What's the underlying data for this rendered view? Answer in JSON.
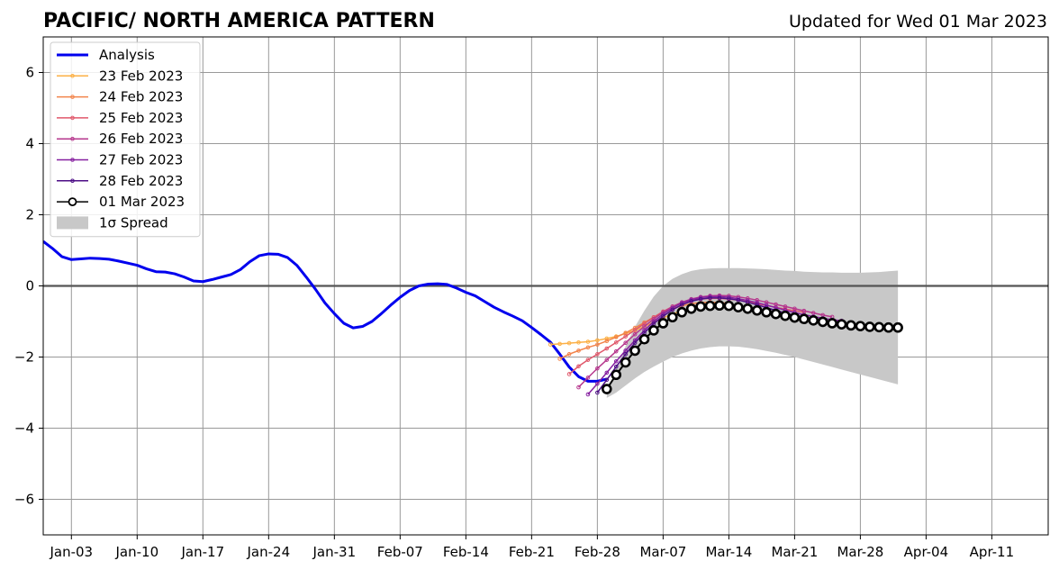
{
  "chart_data": {
    "type": "line",
    "title": "PACIFIC/ NORTH AMERICA PATTERN",
    "subtitle": "Updated for Wed 01 Mar 2023",
    "xlabel": "",
    "ylabel": "",
    "xlim": [
      "2022-12-31",
      "2023-04-17"
    ],
    "ylim": [
      -7,
      7
    ],
    "grid": true,
    "legend_position": "upper-left",
    "x_ticks": [
      {
        "date": "2023-01-03",
        "label": "Jan-03"
      },
      {
        "date": "2023-01-10",
        "label": "Jan-10"
      },
      {
        "date": "2023-01-17",
        "label": "Jan-17"
      },
      {
        "date": "2023-01-24",
        "label": "Jan-24"
      },
      {
        "date": "2023-01-31",
        "label": "Jan-31"
      },
      {
        "date": "2023-02-07",
        "label": "Feb-07"
      },
      {
        "date": "2023-02-14",
        "label": "Feb-14"
      },
      {
        "date": "2023-02-21",
        "label": "Feb-21"
      },
      {
        "date": "2023-02-28",
        "label": "Feb-28"
      },
      {
        "date": "2023-03-07",
        "label": "Mar-07"
      },
      {
        "date": "2023-03-14",
        "label": "Mar-14"
      },
      {
        "date": "2023-03-21",
        "label": "Mar-21"
      },
      {
        "date": "2023-03-28",
        "label": "Mar-28"
      },
      {
        "date": "2023-04-04",
        "label": "Apr-04"
      },
      {
        "date": "2023-04-11",
        "label": "Apr-11"
      }
    ],
    "y_ticks": [
      {
        "value": 6,
        "label": "6"
      },
      {
        "value": 4,
        "label": "4"
      },
      {
        "value": 2,
        "label": "2"
      },
      {
        "value": 0,
        "label": "0"
      },
      {
        "value": -2,
        "label": "−2"
      },
      {
        "value": -4,
        "label": "−4"
      },
      {
        "value": -6,
        "label": "−6"
      }
    ],
    "analysis": {
      "name": "Analysis",
      "color": "#0000ee",
      "start_date": "2022-12-31",
      "values": [
        1.25,
        1.05,
        0.82,
        0.74,
        0.76,
        0.78,
        0.77,
        0.75,
        0.7,
        0.64,
        0.58,
        0.48,
        0.4,
        0.39,
        0.34,
        0.25,
        0.14,
        0.12,
        0.18,
        0.25,
        0.32,
        0.46,
        0.68,
        0.85,
        0.9,
        0.89,
        0.8,
        0.58,
        0.25,
        -0.1,
        -0.48,
        -0.78,
        -1.05,
        -1.18,
        -1.14,
        -1.0,
        -0.78,
        -0.54,
        -0.32,
        -0.13,
        0.0,
        0.05,
        0.06,
        0.04,
        -0.06,
        -0.18,
        -0.28,
        -0.44,
        -0.6,
        -0.73,
        -0.85,
        -0.98,
        -1.17,
        -1.37,
        -1.58,
        -1.92,
        -2.28,
        -2.55,
        -2.68,
        -2.68,
        -2.62
      ]
    },
    "forecasts": [
      {
        "name": "23 Feb 2023",
        "color": "#fcb045",
        "start_date": "2023-02-23",
        "values": [
          -1.65,
          -1.63,
          -1.61,
          -1.59,
          -1.57,
          -1.53,
          -1.48,
          -1.42,
          -1.34,
          -1.25,
          -1.14,
          -1.02,
          -0.9,
          -0.79,
          -0.7,
          -0.63,
          -0.6,
          -0.59,
          -0.6
        ]
      },
      {
        "name": "24 Feb 2023",
        "color": "#f2844b",
        "start_date": "2023-02-24",
        "values": [
          -2.05,
          -1.92,
          -1.82,
          -1.73,
          -1.65,
          -1.55,
          -1.44,
          -1.32,
          -1.18,
          -1.03,
          -0.88,
          -0.75,
          -0.64,
          -0.56,
          -0.5,
          -0.47,
          -0.46,
          -0.47,
          -0.49
        ]
      },
      {
        "name": "25 Feb 2023",
        "color": "#e0586b",
        "start_date": "2023-02-25",
        "values": [
          -2.48,
          -2.26,
          -2.08,
          -1.92,
          -1.76,
          -1.59,
          -1.42,
          -1.24,
          -1.06,
          -0.88,
          -0.72,
          -0.58,
          -0.48,
          -0.41,
          -0.37,
          -0.35,
          -0.35,
          -0.37,
          -0.4,
          -0.45,
          -0.5,
          -0.55,
          -0.6,
          -0.65,
          -0.7,
          -0.74
        ]
      },
      {
        "name": "26 Feb 2023",
        "color": "#b6378d",
        "start_date": "2023-02-26",
        "values": [
          -2.85,
          -2.58,
          -2.32,
          -2.08,
          -1.84,
          -1.6,
          -1.36,
          -1.14,
          -0.93,
          -0.74,
          -0.58,
          -0.46,
          -0.37,
          -0.31,
          -0.28,
          -0.27,
          -0.28,
          -0.31,
          -0.35,
          -0.4,
          -0.46,
          -0.52,
          -0.58,
          -0.64,
          -0.7,
          -0.76,
          -0.82,
          -0.87
        ]
      },
      {
        "name": "27 Feb 2023",
        "color": "#8620a0",
        "start_date": "2023-02-27",
        "values": [
          -3.05,
          -2.75,
          -2.44,
          -2.12,
          -1.82,
          -1.53,
          -1.25,
          -1.0,
          -0.79,
          -0.62,
          -0.48,
          -0.39,
          -0.33,
          -0.3,
          -0.3,
          -0.32,
          -0.36,
          -0.41,
          -0.47,
          -0.54,
          -0.61,
          -0.68,
          -0.75,
          -0.81,
          -0.86,
          -0.91,
          -0.95,
          -0.98
        ]
      },
      {
        "name": "28 Feb 2023",
        "color": "#4c0d86",
        "start_date": "2023-02-28",
        "values": [
          -3.0,
          -2.64,
          -2.27,
          -1.92,
          -1.6,
          -1.32,
          -1.06,
          -0.85,
          -0.67,
          -0.53,
          -0.43,
          -0.37,
          -0.34,
          -0.34,
          -0.36,
          -0.4,
          -0.46,
          -0.53,
          -0.61,
          -0.69,
          -0.76,
          -0.83,
          -0.89,
          -0.95,
          -1.0,
          -1.04,
          -1.07,
          -1.09,
          -1.1
        ]
      },
      {
        "name": "01 Mar 2023",
        "color": "#000000",
        "start_date": "2023-03-01",
        "values": [
          -2.9,
          -2.5,
          -2.15,
          -1.82,
          -1.5,
          -1.25,
          -1.05,
          -0.88,
          -0.74,
          -0.64,
          -0.58,
          -0.56,
          -0.55,
          -0.56,
          -0.6,
          -0.64,
          -0.69,
          -0.74,
          -0.79,
          -0.84,
          -0.89,
          -0.93,
          -0.97,
          -1.01,
          -1.05,
          -1.08,
          -1.11,
          -1.13,
          -1.15,
          -1.16,
          -1.17,
          -1.17
        ]
      }
    ],
    "spread": {
      "name": "1σ Spread",
      "color": "#c8c8c8",
      "start_date": "2023-03-01",
      "upper": [
        -3.05,
        -2.3,
        -1.7,
        -1.15,
        -0.7,
        -0.3,
        0.0,
        0.2,
        0.33,
        0.42,
        0.47,
        0.49,
        0.5,
        0.5,
        0.5,
        0.49,
        0.48,
        0.47,
        0.45,
        0.43,
        0.42,
        0.4,
        0.39,
        0.38,
        0.38,
        0.37,
        0.37,
        0.37,
        0.38,
        0.39,
        0.41,
        0.43
      ],
      "lower": [
        -3.15,
        -3.0,
        -2.8,
        -2.6,
        -2.42,
        -2.27,
        -2.13,
        -2.0,
        -1.9,
        -1.82,
        -1.76,
        -1.72,
        -1.7,
        -1.7,
        -1.71,
        -1.74,
        -1.78,
        -1.83,
        -1.88,
        -1.94,
        -2.0,
        -2.07,
        -2.14,
        -2.21,
        -2.28,
        -2.35,
        -2.42,
        -2.49,
        -2.56,
        -2.63,
        -2.7,
        -2.77
      ]
    }
  }
}
